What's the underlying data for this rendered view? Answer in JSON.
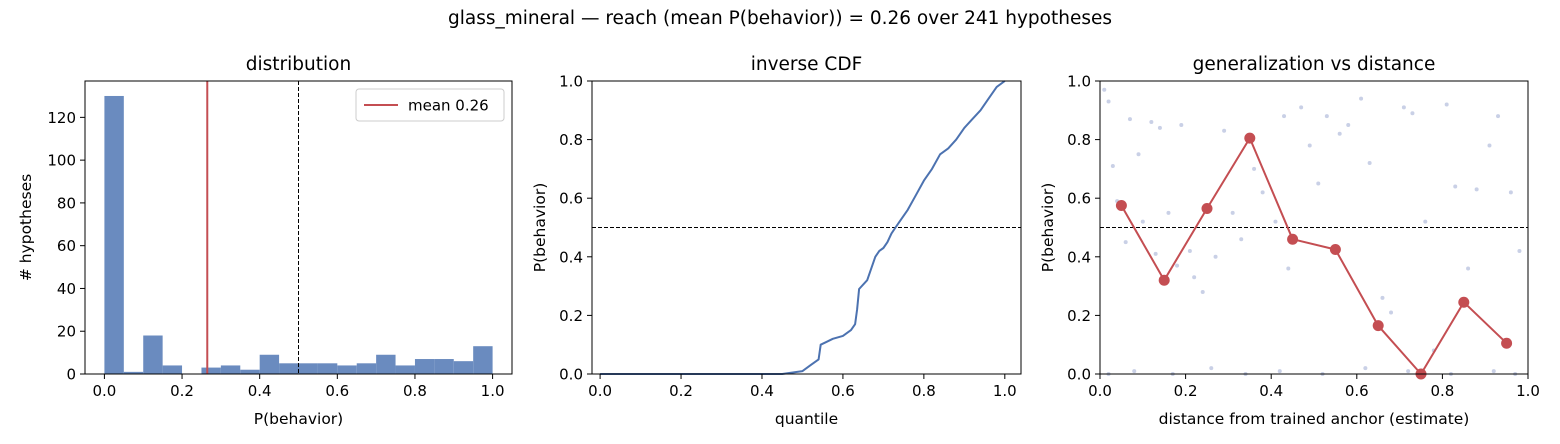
{
  "suptitle": "glass_mineral  —  reach (mean P(behavior)) = 0.26  over 241 hypotheses",
  "colors": {
    "bar": "#6a8bbf",
    "line": "#4c72b0",
    "accent": "#c44e52",
    "scatter": "#c9d0e6",
    "threshold": "#000000"
  },
  "chart_data": [
    {
      "type": "bar",
      "title": "distribution",
      "xlabel": "P(behavior)",
      "ylabel": "# hypotheses",
      "xlim": [
        -0.05,
        1.05
      ],
      "ylim": [
        0,
        137
      ],
      "xticks": [
        "0.0",
        "0.2",
        "0.4",
        "0.6",
        "0.8",
        "1.0"
      ],
      "yticks": [
        "0",
        "20",
        "40",
        "60",
        "80",
        "100",
        "120"
      ],
      "bin_width": 0.05,
      "bin_starts": [
        0.0,
        0.05,
        0.1,
        0.15,
        0.2,
        0.25,
        0.3,
        0.35,
        0.4,
        0.45,
        0.5,
        0.55,
        0.6,
        0.65,
        0.7,
        0.75,
        0.8,
        0.85,
        0.9,
        0.95
      ],
      "values": [
        130,
        1,
        18,
        4,
        0,
        3,
        4,
        2,
        9,
        5,
        5,
        5,
        4,
        5,
        9,
        4,
        7,
        7,
        6,
        13
      ],
      "mean": 0.265,
      "threshold": 0.5,
      "legend": {
        "label": "mean 0.26",
        "position": "top-right"
      }
    },
    {
      "type": "line",
      "title": "inverse CDF",
      "xlabel": "quantile",
      "ylabel": "P(behavior)",
      "xlim": [
        -0.02,
        1.04
      ],
      "ylim": [
        0,
        1
      ],
      "xticks": [
        "0.0",
        "0.2",
        "0.4",
        "0.6",
        "0.8",
        "1.0"
      ],
      "yticks": [
        "0.0",
        "0.2",
        "0.4",
        "0.6",
        "0.8",
        "1.0"
      ],
      "threshold": 0.5,
      "x": [
        0.0,
        0.45,
        0.5,
        0.52,
        0.54,
        0.545,
        0.56,
        0.575,
        0.6,
        0.62,
        0.63,
        0.635,
        0.64,
        0.66,
        0.68,
        0.69,
        0.7,
        0.71,
        0.72,
        0.73,
        0.74,
        0.76,
        0.78,
        0.8,
        0.82,
        0.84,
        0.86,
        0.88,
        0.9,
        0.92,
        0.94,
        0.96,
        0.98,
        1.0
      ],
      "y": [
        0.0,
        0.0,
        0.01,
        0.03,
        0.05,
        0.1,
        0.11,
        0.12,
        0.13,
        0.15,
        0.17,
        0.22,
        0.29,
        0.32,
        0.4,
        0.42,
        0.43,
        0.45,
        0.48,
        0.5,
        0.52,
        0.56,
        0.61,
        0.66,
        0.7,
        0.75,
        0.77,
        0.8,
        0.84,
        0.87,
        0.9,
        0.94,
        0.98,
        1.0
      ]
    },
    {
      "type": "line",
      "title": "generalization vs distance",
      "xlabel": "distance from trained anchor (estimate)",
      "ylabel": "P(behavior)",
      "xlim": [
        0,
        1
      ],
      "ylim": [
        0,
        1
      ],
      "xticks": [
        "0.0",
        "0.2",
        "0.4",
        "0.6",
        "0.8",
        "1.0"
      ],
      "yticks": [
        "0.0",
        "0.2",
        "0.4",
        "0.6",
        "0.8",
        "1.0"
      ],
      "threshold": 0.5,
      "x": [
        0.05,
        0.15,
        0.25,
        0.35,
        0.45,
        0.55,
        0.65,
        0.75,
        0.85,
        0.95
      ],
      "y": [
        0.575,
        0.32,
        0.565,
        0.805,
        0.46,
        0.425,
        0.165,
        0.0,
        0.245,
        0.105
      ],
      "scatter_x": [
        0.01,
        0.02,
        0.03,
        0.04,
        0.06,
        0.07,
        0.09,
        0.1,
        0.12,
        0.13,
        0.14,
        0.16,
        0.18,
        0.19,
        0.21,
        0.22,
        0.24,
        0.27,
        0.29,
        0.31,
        0.33,
        0.36,
        0.38,
        0.41,
        0.43,
        0.44,
        0.47,
        0.49,
        0.51,
        0.53,
        0.56,
        0.58,
        0.61,
        0.63,
        0.66,
        0.68,
        0.71,
        0.73,
        0.76,
        0.78,
        0.81,
        0.83,
        0.86,
        0.88,
        0.91,
        0.93,
        0.96,
        0.98,
        0.02,
        0.08,
        0.17,
        0.26,
        0.34,
        0.42,
        0.52,
        0.62,
        0.72,
        0.82,
        0.92,
        0.97
      ],
      "scatter_y": [
        0.97,
        0.93,
        0.71,
        0.59,
        0.45,
        0.87,
        0.75,
        0.52,
        0.86,
        0.41,
        0.84,
        0.55,
        0.37,
        0.85,
        0.42,
        0.33,
        0.28,
        0.4,
        0.83,
        0.55,
        0.46,
        0.7,
        0.62,
        0.52,
        0.88,
        0.36,
        0.91,
        0.78,
        0.65,
        0.88,
        0.82,
        0.85,
        0.94,
        0.72,
        0.26,
        0.21,
        0.91,
        0.89,
        0.52,
        0.08,
        0.92,
        0.64,
        0.36,
        0.63,
        0.78,
        0.88,
        0.62,
        0.42,
        0.0,
        0.01,
        0.0,
        0.02,
        0.0,
        0.01,
        0.0,
        0.02,
        0.01,
        0.0,
        0.01,
        0.0
      ]
    }
  ]
}
